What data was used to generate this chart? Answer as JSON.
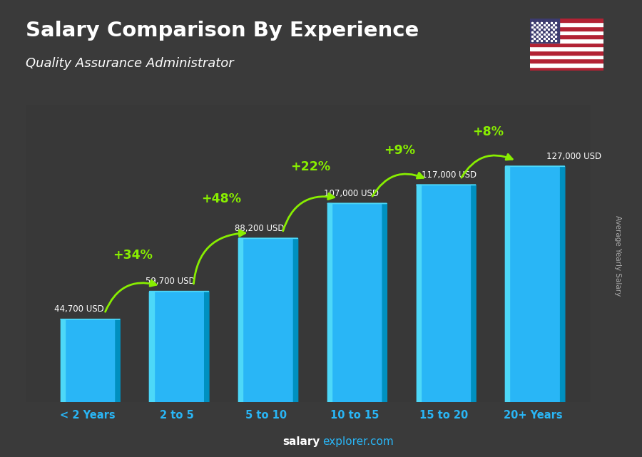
{
  "title": "Salary Comparison By Experience",
  "subtitle": "Quality Assurance Administrator",
  "categories": [
    "< 2 Years",
    "2 to 5",
    "5 to 10",
    "10 to 15",
    "15 to 20",
    "20+ Years"
  ],
  "values": [
    44700,
    59700,
    88200,
    107000,
    117000,
    127000
  ],
  "labels": [
    "44,700 USD",
    "59,700 USD",
    "88,200 USD",
    "107,000 USD",
    "117,000 USD",
    "127,000 USD"
  ],
  "pct_changes": [
    "+34%",
    "+48%",
    "+22%",
    "+9%",
    "+8%"
  ],
  "bar_color_main": "#29B6F6",
  "bar_color_light": "#4DD8F8",
  "bar_color_dark": "#0090C0",
  "bar_color_side": "#1A9FD4",
  "pct_color": "#AAFF00",
  "label_color": "#FFFFFF",
  "title_color": "#FFFFFF",
  "subtitle_color": "#FFFFFF",
  "bg_color": "#3a3a3a",
  "footer_salary_color": "#FFFFFF",
  "footer_explorer_color": "#29B6F6",
  "footer_text": "salaryexplorer.com",
  "ylabel": "Average Yearly Salary",
  "ylim": [
    0,
    160000
  ],
  "arrow_color": "#88EE00"
}
